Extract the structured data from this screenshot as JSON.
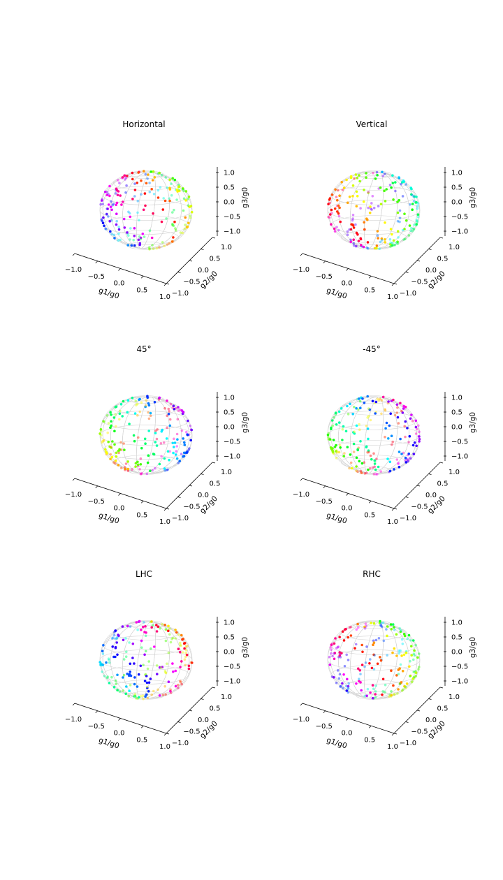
{
  "chart_data": [
    {
      "type": "scatter",
      "title": "Horizontal",
      "xlabel": "g1/g0",
      "ylabel": "g2/g0",
      "zlabel": "g3/g0",
      "xlim": [
        -1.0,
        1.0
      ],
      "ylim": [
        -1.0,
        1.0
      ],
      "zlim": [
        -1.0,
        1.0
      ],
      "xticks": [
        "−1.0",
        "−0.5",
        "0.0",
        "0.5",
        "1.0"
      ],
      "yticks": [
        "−1.0",
        "−0.5",
        "0.0",
        "0.5",
        "1.0"
      ],
      "zticks": [
        "−1.0",
        "−0.5",
        "0.0",
        "0.5",
        "1.0"
      ],
      "n_points": 200,
      "seed": 11
    },
    {
      "type": "scatter",
      "title": "Vertical",
      "xlabel": "g1/g0",
      "ylabel": "g2/g0",
      "zlabel": "g3/g0",
      "xlim": [
        -1.0,
        1.0
      ],
      "ylim": [
        -1.0,
        1.0
      ],
      "zlim": [
        -1.0,
        1.0
      ],
      "xticks": [
        "−1.0",
        "−0.5",
        "0.0",
        "0.5",
        "1.0"
      ],
      "yticks": [
        "−1.0",
        "−0.5",
        "0.0",
        "0.5",
        "1.0"
      ],
      "zticks": [
        "−1.0",
        "−0.5",
        "0.0",
        "0.5",
        "1.0"
      ],
      "n_points": 200,
      "seed": 23
    },
    {
      "type": "scatter",
      "title": "45°",
      "xlabel": "g1/g0",
      "ylabel": "g2/g0",
      "zlabel": "g3/g0",
      "xlim": [
        -1.0,
        1.0
      ],
      "ylim": [
        -1.0,
        1.0
      ],
      "zlim": [
        -1.0,
        1.0
      ],
      "xticks": [
        "−1.0",
        "−0.5",
        "0.0",
        "0.5",
        "1.0"
      ],
      "yticks": [
        "−1.0",
        "−0.5",
        "0.0",
        "0.5",
        "1.0"
      ],
      "zticks": [
        "−1.0",
        "−0.5",
        "0.0",
        "0.5",
        "1.0"
      ],
      "n_points": 200,
      "seed": 37
    },
    {
      "type": "scatter",
      "title": "-45°",
      "xlabel": "g1/g0",
      "ylabel": "g2/g0",
      "zlabel": "g3/g0",
      "xlim": [
        -1.0,
        1.0
      ],
      "ylim": [
        -1.0,
        1.0
      ],
      "zlim": [
        -1.0,
        1.0
      ],
      "xticks": [
        "−1.0",
        "−0.5",
        "0.0",
        "0.5",
        "1.0"
      ],
      "yticks": [
        "−1.0",
        "−0.5",
        "0.0",
        "0.5",
        "1.0"
      ],
      "zticks": [
        "−1.0",
        "−0.5",
        "0.0",
        "0.5",
        "1.0"
      ],
      "n_points": 200,
      "seed": 41
    },
    {
      "type": "scatter",
      "title": "LHC",
      "xlabel": "g1/g0",
      "ylabel": "g2/g0",
      "zlabel": "g3/g0",
      "xlim": [
        -1.0,
        1.0
      ],
      "ylim": [
        -1.0,
        1.0
      ],
      "zlim": [
        -1.0,
        1.0
      ],
      "xticks": [
        "−1.0",
        "−0.5",
        "0.0",
        "0.5",
        "1.0"
      ],
      "yticks": [
        "−1.0",
        "−0.5",
        "0.0",
        "0.5",
        "1.0"
      ],
      "zticks": [
        "−1.0",
        "−0.5",
        "0.0",
        "0.5",
        "1.0"
      ],
      "n_points": 200,
      "seed": 53
    },
    {
      "type": "scatter",
      "title": "RHC",
      "xlabel": "g1/g0",
      "ylabel": "g2/g0",
      "zlabel": "g3/g0",
      "xlim": [
        -1.0,
        1.0
      ],
      "ylim": [
        -1.0,
        1.0
      ],
      "zlim": [
        -1.0,
        1.0
      ],
      "xticks": [
        "−1.0",
        "−0.5",
        "0.0",
        "0.5",
        "1.0"
      ],
      "yticks": [
        "−1.0",
        "−0.5",
        "0.0",
        "0.5",
        "1.0"
      ],
      "zticks": [
        "−1.0",
        "−0.5",
        "0.0",
        "0.5",
        "1.0"
      ],
      "n_points": 200,
      "seed": 67
    }
  ],
  "colors": {
    "wireframe": "#d3d3d3",
    "axis": "#000000"
  }
}
